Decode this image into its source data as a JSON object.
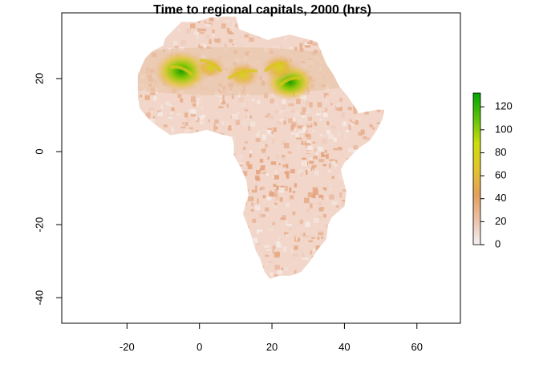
{
  "title": "Time to regional capitals, 2000 (hrs)",
  "map": {
    "x_range": [
      -38,
      72
    ],
    "y_range": [
      -47,
      38
    ],
    "x_ticks": [
      -20,
      0,
      20,
      40,
      60
    ],
    "y_ticks": [
      20,
      0,
      -20,
      -40
    ]
  },
  "legend": {
    "min": 0,
    "max": 132,
    "ticks": [
      0,
      20,
      40,
      60,
      80,
      100,
      120
    ],
    "colors": [
      "#f2f2f2",
      "#ecbfa7",
      "#e3a05b",
      "#e3c42c",
      "#cddc0c",
      "#5ec20c",
      "#00a600"
    ]
  },
  "hotspots": [
    {
      "lon": -5,
      "lat": 22,
      "hours": 130
    },
    {
      "lon": 25,
      "lat": 19,
      "hours": 110
    },
    {
      "lon": 12,
      "lat": 21,
      "hours": 60
    },
    {
      "lon": 22,
      "lat": 23,
      "hours": 65
    },
    {
      "lon": 3,
      "lat": 23,
      "hours": 45
    }
  ]
}
